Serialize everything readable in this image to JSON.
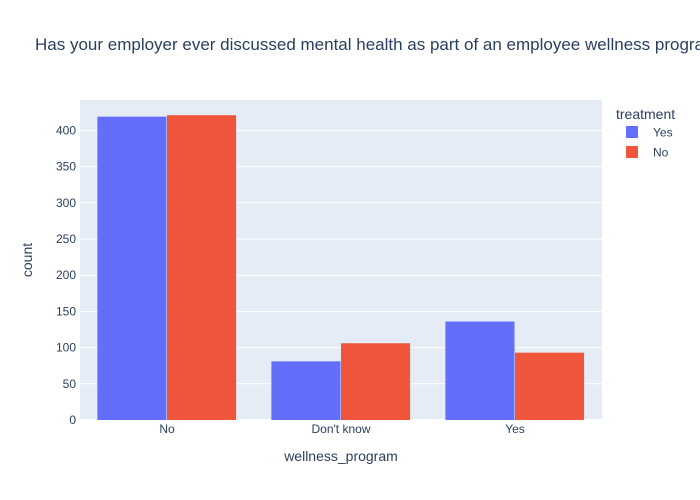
{
  "chart_data": {
    "type": "bar",
    "title": "Has your employer ever discussed mental health as part of an employee wellness program?",
    "xlabel": "wellness_program",
    "ylabel": "count",
    "categories": [
      "No",
      "Don't know",
      "Yes"
    ],
    "series": [
      {
        "name": "Yes",
        "values": [
          419,
          81,
          136
        ],
        "color": "#636efa"
      },
      {
        "name": "No",
        "values": [
          421,
          106,
          93
        ],
        "color": "#ef553b"
      }
    ],
    "ylim": [
      0,
      442
    ],
    "yticks": [
      0,
      50,
      100,
      150,
      200,
      250,
      300,
      350,
      400
    ],
    "legend": {
      "title": "treatment",
      "position": "top-right"
    },
    "grid": true,
    "colors": {
      "plot_bg": "#e5ecf6",
      "grid": "#ffffff",
      "text": "#2a3f5f"
    }
  }
}
